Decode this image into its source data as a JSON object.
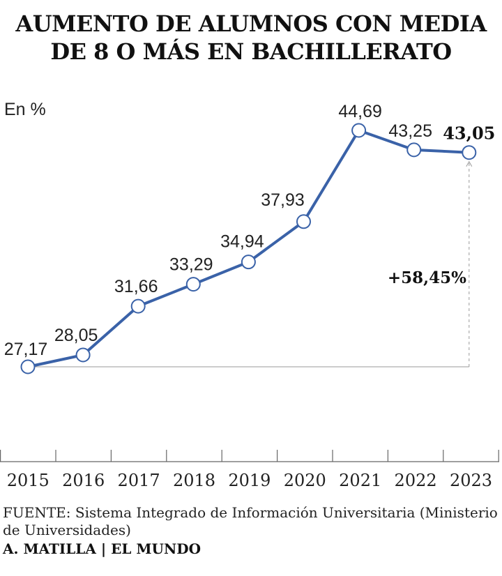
{
  "chart_data": {
    "type": "line",
    "title": "AUMENTO DE ALUMNOS CON MEDIA DE 8 O MÁS EN BACHILLERATO",
    "unit_label": "En %",
    "x": [
      "2015",
      "2016",
      "2017",
      "2018",
      "2019",
      "2020",
      "2021",
      "2022",
      "2023"
    ],
    "series": [
      {
        "values": [
          27.17,
          28.05,
          31.66,
          33.29,
          34.94,
          37.93,
          44.69,
          43.25,
          43.05
        ],
        "value_labels": [
          "27,17",
          "28,05",
          "31,66",
          "33,29",
          "34,94",
          "37,93",
          "44,69",
          "43,25",
          "43,05"
        ]
      }
    ],
    "annotation": "+58,45%",
    "line_color": "#3a62a8",
    "grid": false
  },
  "source": {
    "label": "FUENTE:",
    "text": " Sistema Integrado de Información Universitaria (Ministerio de Universidades)"
  },
  "credit": "A. MATILLA | EL MUNDO"
}
